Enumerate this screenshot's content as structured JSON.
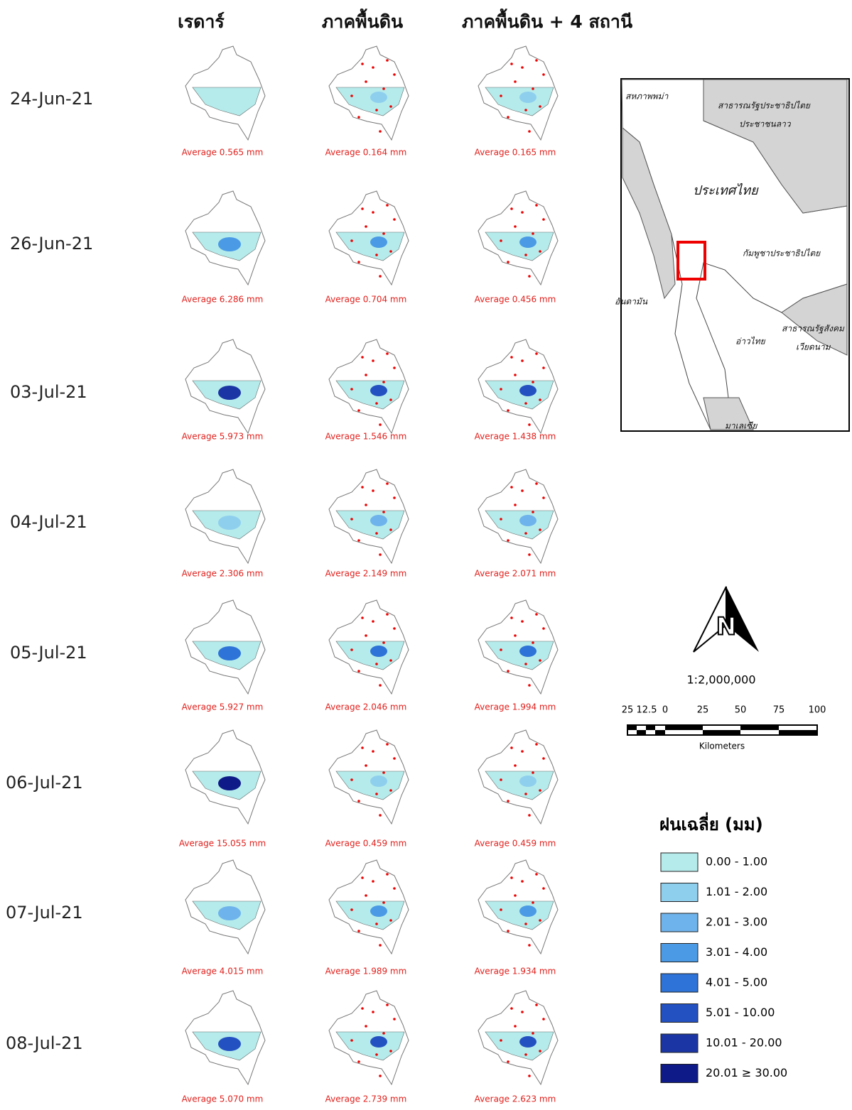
{
  "column_headers": [
    "เรดาร์",
    "ภาคพื้นดิน",
    "ภาคพื้นดิน + 4 สถานี"
  ],
  "rows": [
    {
      "date": "24-Jun-21",
      "averages": [
        "Average 0.565 mm",
        "Average 0.164 mm",
        "Average 0.165 mm"
      ]
    },
    {
      "date": "26-Jun-21",
      "averages": [
        "Average 6.286 mm",
        "Average 0.704 mm",
        "Average 0.456 mm"
      ]
    },
    {
      "date": "03-Jul-21",
      "averages": [
        "Average 5.973 mm",
        "Average 1.546 mm",
        "Average 1.438 mm"
      ]
    },
    {
      "date": "04-Jul-21",
      "averages": [
        "Average 2.306 mm",
        "Average 2.149 mm",
        "Average 2.071 mm"
      ]
    },
    {
      "date": "05-Jul-21",
      "averages": [
        "Average 5.927 mm",
        "Average 2.046 mm",
        "Average 1.994 mm"
      ]
    },
    {
      "date": "06-Jul-21",
      "averages": [
        "Average 15.055 mm",
        "Average 0.459 mm",
        "Average 0.459 mm"
      ]
    },
    {
      "date": "07-Jul-21",
      "averages": [
        "Average 4.015 mm",
        "Average 1.989 mm",
        "Average 1.934 mm"
      ]
    },
    {
      "date": "08-Jul-21",
      "averages": [
        "Average 5.070 mm",
        "Average 2.739 mm",
        "Average 2.623 mm"
      ]
    }
  ],
  "inset_map": {
    "labels": [
      "สหภาพพม่า",
      "สาธารณรัฐประชาธิปไตย",
      "ประชาชนลาว",
      "ประเทศไทย",
      "กัมพูชาประชาธิปไตย",
      "อันดามัน",
      "อ่าวไทย",
      "สาธารณรัฐสังคม",
      "เวียดนาม",
      "มาเลเซีย"
    ]
  },
  "north_arrow": "N",
  "scale": "1:2,000,000",
  "scale_bar": {
    "labels": [
      "25",
      "12.5",
      "0",
      "25",
      "50",
      "75",
      "100"
    ],
    "unit": "Kilometers"
  },
  "legend": {
    "title": "ฝนเฉลี่ย (มม)",
    "items": [
      {
        "label": "0.00 - 1.00",
        "color": "#b5ebeb"
      },
      {
        "label": "1.01 - 2.00",
        "color": "#8fcfee"
      },
      {
        "label": "2.01 - 3.00",
        "color": "#6eb3ec"
      },
      {
        "label": "3.01 - 4.00",
        "color": "#4a9ae6"
      },
      {
        "label": "4.01 - 5.00",
        "color": "#2d73d8"
      },
      {
        "label": "5.01 - 10.00",
        "color": "#2451c2"
      },
      {
        "label": "10.01 - 20.00",
        "color": "#1b36a4"
      },
      {
        "label": "20.01 ≥ 30.00",
        "color": "#0d1a88"
      }
    ]
  }
}
